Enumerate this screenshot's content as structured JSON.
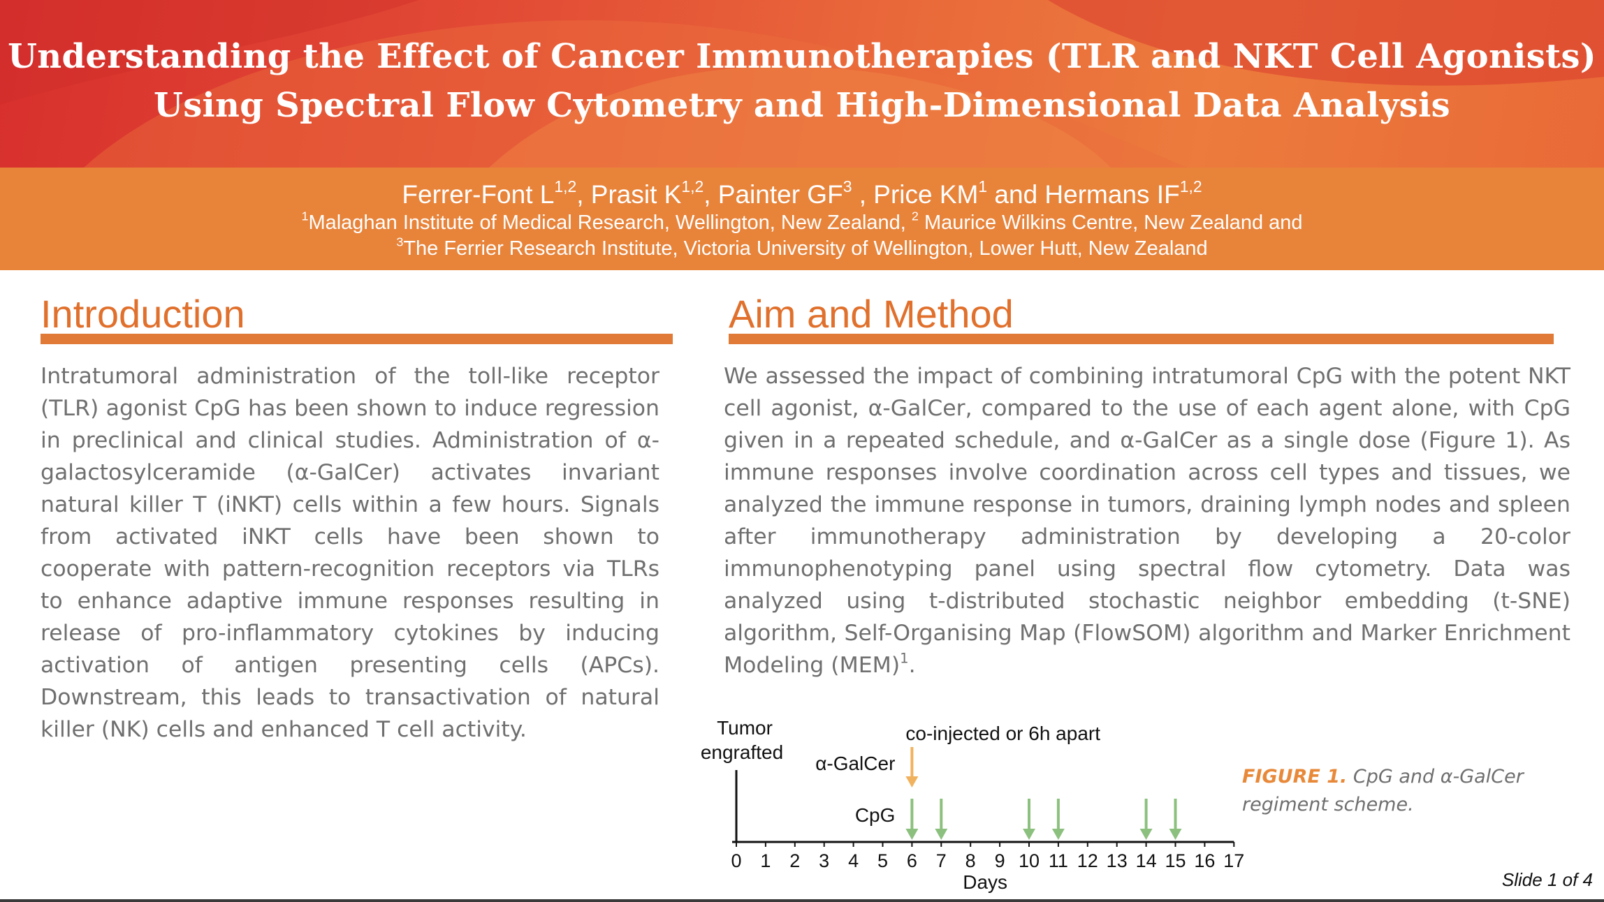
{
  "title": {
    "line1": "Understanding the Effect of Cancer Immunotherapies (TLR and NKT Cell Agonists)",
    "line2": "Using Spectral Flow Cytometry and High-Dimensional Data Analysis"
  },
  "authors": {
    "a1_name": "Ferrer-Font L",
    "a1_aff": "1,2",
    "a2_name": ", Prasit K",
    "a2_aff": "1,2",
    "a3_name": ", Painter GF",
    "a3_aff": "3",
    "a4_name": " , Price KM",
    "a4_aff": "1",
    "a5_name": " and Hermans IF",
    "a5_aff": "1,2"
  },
  "affiliations": {
    "line1_mark": "1",
    "line1_text": "Malaghan Institute of Medical Research, Wellington, New Zealand, ",
    "line1_mark2": "2",
    "line1_text2": " Maurice Wilkins Centre, New Zealand and",
    "line2_mark": "3",
    "line2_text": "The Ferrier Research Institute, Victoria University of Wellington, Lower Hutt, New Zealand"
  },
  "introduction": {
    "heading": "Introduction",
    "body": "Intratumoral administration of the toll-like receptor (TLR) agonist CpG has been shown to induce regression in preclinical and clinical studies. Administration of α-galactosylceramide (α-GalCer) activates invariant natural killer T (iNKT) cells within a few hours. Signals from activated iNKT cells have been shown to cooperate with pattern-recognition receptors via TLRs to enhance adaptive immune responses resulting in release of pro-inflammatory cytokines by inducing activation of antigen presenting cells (APCs). Downstream, this leads to transactivation of natural killer (NK) cells and enhanced T cell activity."
  },
  "aim": {
    "heading": "Aim and Method",
    "body": "We assessed the impact of combining intratumoral CpG with the potent NKT cell agonist, α-GalCer, compared to the use of each agent alone, with CpG given in a repeated schedule, and α-GalCer as a single dose (Figure 1). As immune responses involve coordination across cell types and tissues, we analyzed the immune response in tumors, draining lymph nodes and spleen after immunotherapy administration by developing a 20-color immunophenotyping panel using spectral flow cytometry. Data was analyzed using t-distributed stochastic neighbor embedding (t-SNE) algorithm, Self-Organising Map (FlowSOM) algorithm and Marker Enrichment Modeling (MEM)",
    "ref": "1",
    "end": "."
  },
  "chart_data": {
    "type": "timeline",
    "xlabel": "Days",
    "x_ticks": [
      0,
      1,
      2,
      3,
      4,
      5,
      6,
      7,
      8,
      9,
      10,
      11,
      12,
      13,
      14,
      15,
      16,
      17
    ],
    "xlim": [
      0,
      17
    ],
    "annotations": {
      "start": "Tumor engrafted",
      "start_line1": "Tumor",
      "start_line2": "engrafted",
      "co_injection": "co-injected or 6h apart"
    },
    "series": [
      {
        "name": "α-GalCer",
        "days": [
          6
        ],
        "color": "#f0b25e"
      },
      {
        "name": "CpG",
        "days": [
          6,
          7,
          10,
          11,
          14,
          15
        ],
        "color": "#8cc07e"
      }
    ]
  },
  "figure_caption": {
    "label": "FIGURE 1.",
    "text": " CpG and α-GalCer regiment scheme."
  },
  "footer": {
    "slide": "Slide 1 of 4"
  }
}
